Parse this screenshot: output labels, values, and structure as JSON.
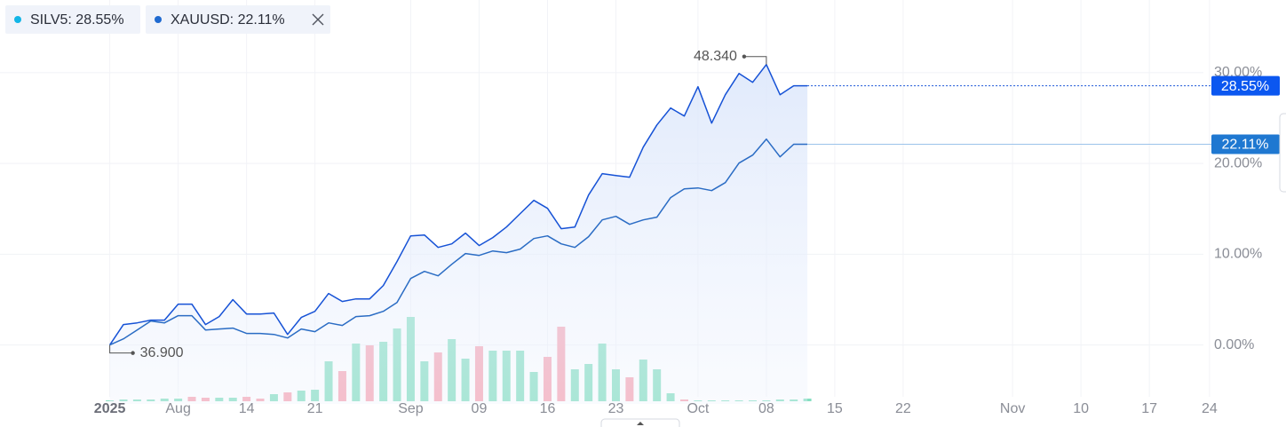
{
  "chart_data": {
    "type": "line",
    "x": [
      0,
      1,
      2,
      3,
      4,
      5,
      6,
      7,
      8,
      9,
      10,
      11,
      12,
      13,
      14,
      15,
      16,
      17,
      18,
      19,
      20,
      21,
      22,
      23,
      24,
      25,
      26,
      27,
      28,
      29,
      30,
      31,
      32,
      33,
      34,
      35,
      36,
      37,
      38,
      39,
      40,
      41,
      42,
      43,
      44,
      45,
      46,
      47,
      48,
      49,
      50,
      51
    ],
    "series": [
      {
        "name": "SILV5: 28.55%",
        "color": "#1652d6",
        "dot_color": "#12b5e6",
        "end_label": "28.55%",
        "tag_color": "#0b57f0",
        "end_line": "dotted",
        "values": [
          0,
          2.25,
          2.44,
          2.74,
          2.74,
          4.5,
          4.5,
          2.25,
          3.13,
          5.0,
          3.42,
          3.42,
          3.52,
          1.17,
          3.03,
          3.71,
          5.67,
          4.79,
          5.08,
          5.08,
          6.55,
          9.19,
          12.02,
          12.12,
          10.75,
          11.14,
          12.32,
          10.95,
          11.83,
          13.0,
          14.47,
          15.93,
          15.05,
          12.81,
          13.0,
          16.52,
          18.87,
          18.67,
          18.48,
          21.8,
          24.24,
          26.1,
          25.22,
          28.45,
          24.44,
          27.57,
          29.9,
          28.94,
          30.89,
          27.57,
          28.55,
          28.55
        ]
      },
      {
        "name": "XAUUSD: 22.11%",
        "color": "#2a6cc4",
        "dot_color": "#1f6ad0",
        "end_label": "22.11%",
        "tag_color": "#1f78d1",
        "end_line": "solid",
        "values": [
          0,
          0.68,
          1.66,
          2.64,
          2.44,
          3.23,
          3.23,
          1.66,
          1.76,
          1.86,
          1.27,
          1.27,
          1.17,
          0.78,
          1.76,
          1.47,
          2.44,
          2.15,
          3.13,
          3.23,
          3.71,
          4.69,
          7.33,
          8.11,
          7.62,
          8.89,
          10.07,
          9.87,
          10.36,
          10.17,
          10.56,
          11.73,
          12.02,
          11.14,
          10.75,
          11.93,
          13.78,
          14.17,
          13.29,
          13.78,
          14.08,
          16.23,
          17.2,
          17.3,
          17.01,
          17.89,
          20.04,
          20.92,
          22.68,
          20.72,
          22.11,
          22.11
        ]
      }
    ],
    "area_series": 0,
    "annotations": [
      {
        "text": "48.340",
        "series": 0,
        "at": "max"
      },
      {
        "text": "36.900",
        "series": 0,
        "at": "min"
      }
    ],
    "volume": {
      "values": [
        1,
        2,
        2,
        2,
        3,
        3,
        5,
        4,
        4,
        4,
        5,
        3,
        8,
        10,
        12,
        13,
        45,
        34,
        65,
        63,
        67,
        82,
        95,
        45,
        55,
        70,
        48,
        62,
        57,
        57,
        57,
        33,
        50,
        84,
        36,
        42,
        65,
        36,
        27,
        47,
        36,
        9,
        2,
        1,
        1,
        1,
        1,
        1,
        1,
        2,
        2,
        3
      ],
      "up": [
        true,
        true,
        true,
        true,
        true,
        true,
        false,
        false,
        true,
        true,
        false,
        false,
        true,
        false,
        true,
        true,
        true,
        false,
        true,
        false,
        true,
        true,
        true,
        true,
        false,
        true,
        true,
        false,
        true,
        true,
        true,
        true,
        false,
        false,
        true,
        true,
        true,
        true,
        false,
        true,
        true,
        true,
        false,
        true,
        true,
        true,
        true,
        true,
        true,
        true,
        true,
        true
      ],
      "up_color": "#85dfc1",
      "down_color": "#f7a3b2",
      "vlim": [
        0,
        100
      ]
    },
    "xlim": [
      -4,
      80.6
    ],
    "xticks": [
      {
        "value": 0,
        "label": "2025",
        "bold": true
      },
      {
        "value": 5,
        "label": "Aug"
      },
      {
        "value": 10,
        "label": "14"
      },
      {
        "value": 15,
        "label": "21"
      },
      {
        "value": 22,
        "label": "Sep"
      },
      {
        "value": 27,
        "label": "09"
      },
      {
        "value": 32,
        "label": "16"
      },
      {
        "value": 37,
        "label": "23"
      },
      {
        "value": 43,
        "label": "Oct"
      },
      {
        "value": 48,
        "label": "08"
      },
      {
        "value": 53,
        "label": "15"
      },
      {
        "value": 58,
        "label": "22"
      },
      {
        "value": 66,
        "label": "Nov"
      },
      {
        "value": 71,
        "label": "10"
      },
      {
        "value": 76,
        "label": "17"
      },
      {
        "value": 80.4,
        "label": "24"
      }
    ],
    "ylim": [
      -6,
      38
    ],
    "yticks": [
      {
        "value": 0,
        "label": "0.00%"
      },
      {
        "value": 10,
        "label": "10.00%"
      },
      {
        "value": 20,
        "label": "20.00%"
      },
      {
        "value": 30,
        "label": "30.00%"
      }
    ],
    "grid": true
  }
}
